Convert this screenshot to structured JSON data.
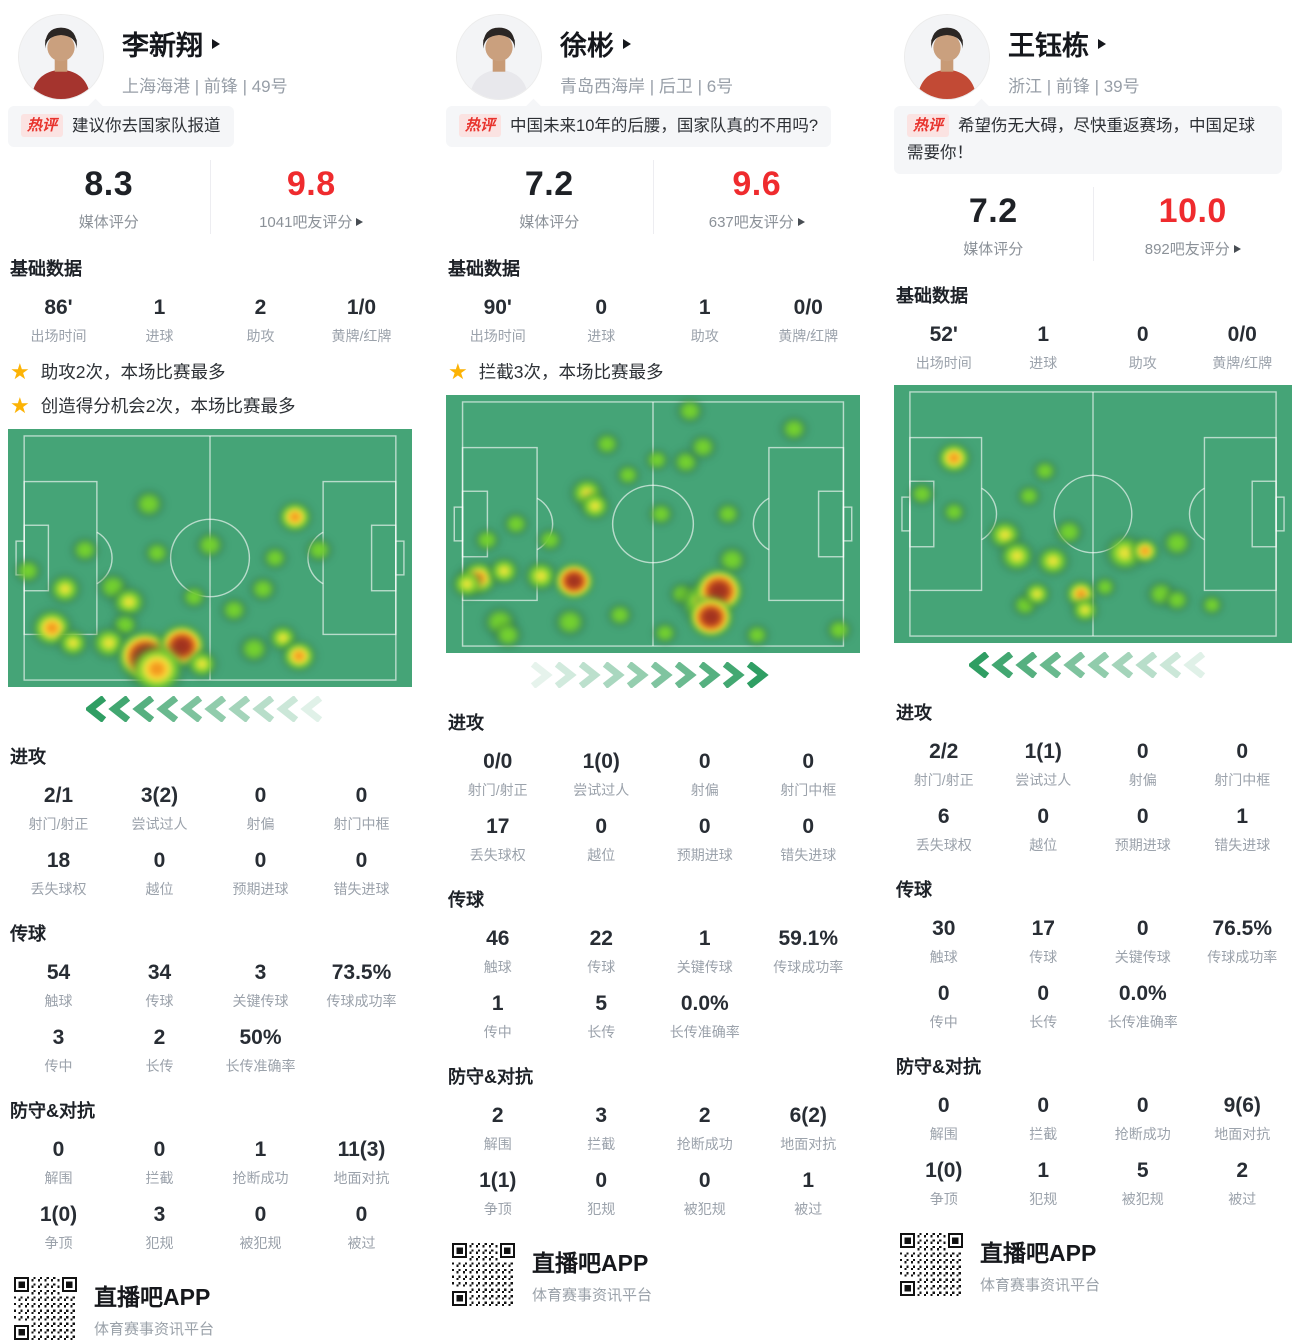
{
  "footer": {
    "app_name": "直播吧APP",
    "app_desc": "体育赛事资讯平台"
  },
  "colors": {
    "accent_red": "#ef2b2e",
    "hot_badge_red": "#e8332d",
    "hot_badge_bg": "#fbe3e2",
    "pitch_green": "#45a477",
    "star_gold": "#fcb305",
    "arrow_green": "#2f9e63"
  },
  "players": [
    {
      "name": "李新翔",
      "team_line": "上海海港 | 前锋 | 49号",
      "jersey": "#a5342e",
      "hot_label": "热评",
      "hot_comment": "建议你去国家队报道",
      "media_score": "8.3",
      "media_label": "媒体评分",
      "fan_score": "9.8",
      "fan_label": "1041吧友评分",
      "basic_title": "基础数据",
      "basic": [
        [
          "86'",
          "出场时间"
        ],
        [
          "1",
          "进球"
        ],
        [
          "2",
          "助攻"
        ],
        [
          "1/0",
          "黄牌/红牌"
        ]
      ],
      "highlights": [
        "助攻2次，本场比赛最多",
        "创造得分机会2次，本场比赛最多"
      ],
      "arrow_dir": "left",
      "sections": [
        {
          "title": "进攻",
          "rows": [
            [
              [
                "2/1",
                "射门/射正"
              ],
              [
                "3(2)",
                "尝试过人"
              ],
              [
                "0",
                "射偏"
              ],
              [
                "0",
                "射门中框"
              ]
            ],
            [
              [
                "18",
                "丢失球权"
              ],
              [
                "0",
                "越位"
              ],
              [
                "0",
                "预期进球"
              ],
              [
                "0",
                "错失进球"
              ]
            ]
          ]
        },
        {
          "title": "传球",
          "rows": [
            [
              [
                "54",
                "触球"
              ],
              [
                "34",
                "传球"
              ],
              [
                "3",
                "关键传球"
              ],
              [
                "73.5%",
                "传球成功率"
              ]
            ],
            [
              [
                "3",
                "传中"
              ],
              [
                "2",
                "长传"
              ],
              [
                "50%",
                "长传准确率"
              ]
            ]
          ]
        },
        {
          "title": "防守&对抗",
          "rows": [
            [
              [
                "0",
                "解围"
              ],
              [
                "0",
                "拦截"
              ],
              [
                "1",
                "抢断成功"
              ],
              [
                "11(3)",
                "地面对抗"
              ]
            ],
            [
              [
                "1(0)",
                "争顶"
              ],
              [
                "3",
                "犯规"
              ],
              [
                "0",
                "被犯规"
              ],
              [
                "0",
                "被过"
              ]
            ]
          ]
        }
      ],
      "heatmap": [
        [
          35,
          29,
          40,
          1
        ],
        [
          19,
          47,
          36,
          1
        ],
        [
          50,
          45,
          38,
          1
        ],
        [
          37,
          48,
          34,
          1
        ],
        [
          71,
          34,
          44,
          3
        ],
        [
          66,
          50,
          34,
          1
        ],
        [
          77,
          47,
          36,
          1
        ],
        [
          5,
          55,
          36,
          1
        ],
        [
          14,
          62,
          42,
          2
        ],
        [
          26,
          61,
          40,
          1
        ],
        [
          30,
          67,
          44,
          2
        ],
        [
          46,
          65,
          34,
          1
        ],
        [
          63,
          62,
          36,
          1
        ],
        [
          56,
          70,
          36,
          1
        ],
        [
          29,
          76,
          36,
          1
        ],
        [
          11,
          77,
          52,
          3
        ],
        [
          16,
          83,
          40,
          2
        ],
        [
          25,
          83,
          46,
          2
        ],
        [
          34,
          88,
          64,
          4
        ],
        [
          43,
          84,
          54,
          4
        ],
        [
          37,
          93,
          70,
          3
        ],
        [
          48,
          91,
          40,
          2
        ],
        [
          61,
          85,
          40,
          1
        ],
        [
          68,
          81,
          38,
          2
        ],
        [
          72,
          88,
          44,
          3
        ]
      ]
    },
    {
      "name": "徐彬",
      "team_line": "青岛西海岸 | 后卫 | 6号",
      "jersey": "#e8e8ec",
      "hot_label": "热评",
      "hot_comment": "中国未来10年的后腰，国家队真的不用吗?",
      "media_score": "7.2",
      "media_label": "媒体评分",
      "fan_score": "9.6",
      "fan_label": "637吧友评分",
      "basic_title": "基础数据",
      "basic": [
        [
          "90'",
          "出场时间"
        ],
        [
          "0",
          "进球"
        ],
        [
          "1",
          "助攻"
        ],
        [
          "0/0",
          "黄牌/红牌"
        ]
      ],
      "highlights": [
        "拦截3次，本场比赛最多"
      ],
      "arrow_dir": "right",
      "sections": [
        {
          "title": "进攻",
          "rows": [
            [
              [
                "0/0",
                "射门/射正"
              ],
              [
                "1(0)",
                "尝试过人"
              ],
              [
                "0",
                "射偏"
              ],
              [
                "0",
                "射门中框"
              ]
            ],
            [
              [
                "17",
                "丢失球权"
              ],
              [
                "0",
                "越位"
              ],
              [
                "0",
                "预期进球"
              ],
              [
                "0",
                "错失进球"
              ]
            ]
          ]
        },
        {
          "title": "传球",
          "rows": [
            [
              [
                "46",
                "触球"
              ],
              [
                "22",
                "传球"
              ],
              [
                "1",
                "关键传球"
              ],
              [
                "59.1%",
                "传球成功率"
              ]
            ],
            [
              [
                "1",
                "传中"
              ],
              [
                "5",
                "长传"
              ],
              [
                "0.0%",
                "长传准确率"
              ]
            ]
          ]
        },
        {
          "title": "防守&对抗",
          "rows": [
            [
              [
                "2",
                "解围"
              ],
              [
                "3",
                "拦截"
              ],
              [
                "2",
                "抢断成功"
              ],
              [
                "6(2)",
                "地面对抗"
              ]
            ],
            [
              [
                "1(1)",
                "争顶"
              ],
              [
                "0",
                "犯规"
              ],
              [
                "0",
                "被犯规"
              ],
              [
                "1",
                "被过"
              ]
            ]
          ]
        }
      ],
      "heatmap": [
        [
          59,
          6,
          36,
          1
        ],
        [
          84,
          13,
          36,
          1
        ],
        [
          39,
          19,
          34,
          1
        ],
        [
          51,
          25,
          32,
          1
        ],
        [
          58,
          26,
          36,
          1
        ],
        [
          62,
          20,
          36,
          1
        ],
        [
          44,
          31,
          32,
          1
        ],
        [
          34,
          38,
          44,
          2
        ],
        [
          36,
          43,
          40,
          2
        ],
        [
          52,
          46,
          34,
          1
        ],
        [
          68,
          46,
          34,
          1
        ],
        [
          17,
          50,
          34,
          1
        ],
        [
          10,
          56,
          34,
          1
        ],
        [
          25,
          56,
          34,
          1
        ],
        [
          8,
          71,
          48,
          3
        ],
        [
          5,
          73,
          40,
          2
        ],
        [
          14,
          68,
          40,
          2
        ],
        [
          23,
          70,
          44,
          2
        ],
        [
          31,
          72,
          46,
          4
        ],
        [
          13,
          88,
          44,
          1
        ],
        [
          15,
          93,
          38,
          1
        ],
        [
          30,
          88,
          42,
          1
        ],
        [
          42,
          85,
          34,
          1
        ],
        [
          53,
          92,
          32,
          1
        ],
        [
          57,
          77,
          34,
          1
        ],
        [
          69,
          64,
          40,
          1
        ],
        [
          62,
          80,
          60,
          2
        ],
        [
          66,
          76,
          56,
          4
        ],
        [
          64,
          86,
          52,
          4
        ],
        [
          75,
          93,
          32,
          1
        ],
        [
          95,
          91,
          34,
          1
        ]
      ]
    },
    {
      "name": "王钰栋",
      "team_line": "浙江 | 前锋 | 39号",
      "jersey": "#c24a35",
      "hot_label": "热评",
      "hot_comment": "希望伤无大碍，尽快重返赛场，中国足球需要你！",
      "media_score": "7.2",
      "media_label": "媒体评分",
      "fan_score": "10.0",
      "fan_label": "892吧友评分",
      "basic_title": "基础数据",
      "basic": [
        [
          "52'",
          "出场时间"
        ],
        [
          "1",
          "进球"
        ],
        [
          "0",
          "助攻"
        ],
        [
          "0/0",
          "黄牌/红牌"
        ]
      ],
      "highlights": [],
      "arrow_dir": "left",
      "sections": [
        {
          "title": "进攻",
          "rows": [
            [
              [
                "2/2",
                "射门/射正"
              ],
              [
                "1(1)",
                "尝试过人"
              ],
              [
                "0",
                "射偏"
              ],
              [
                "0",
                "射门中框"
              ]
            ],
            [
              [
                "6",
                "丢失球权"
              ],
              [
                "0",
                "越位"
              ],
              [
                "0",
                "预期进球"
              ],
              [
                "1",
                "错失进球"
              ]
            ]
          ]
        },
        {
          "title": "传球",
          "rows": [
            [
              [
                "30",
                "触球"
              ],
              [
                "17",
                "传球"
              ],
              [
                "0",
                "关键传球"
              ],
              [
                "76.5%",
                "传球成功率"
              ]
            ],
            [
              [
                "0",
                "传中"
              ],
              [
                "0",
                "长传"
              ],
              [
                "0.0%",
                "长传准确率"
              ]
            ]
          ]
        },
        {
          "title": "防守&对抗",
          "rows": [
            [
              [
                "0",
                "解围"
              ],
              [
                "0",
                "拦截"
              ],
              [
                "0",
                "抢断成功"
              ],
              [
                "9(6)",
                "地面对抗"
              ]
            ],
            [
              [
                "1(0)",
                "争顶"
              ],
              [
                "1",
                "犯规"
              ],
              [
                "5",
                "被犯规"
              ],
              [
                "2",
                "被过"
              ]
            ]
          ]
        }
      ],
      "heatmap": [
        [
          15,
          28,
          44,
          3
        ],
        [
          7,
          42,
          34,
          1
        ],
        [
          15,
          49,
          32,
          1
        ],
        [
          38,
          33,
          32,
          1
        ],
        [
          34,
          43,
          32,
          1
        ],
        [
          28,
          58,
          44,
          2
        ],
        [
          31,
          66,
          46,
          2
        ],
        [
          40,
          68,
          44,
          2
        ],
        [
          44,
          57,
          38,
          1
        ],
        [
          58,
          65,
          52,
          2
        ],
        [
          63,
          64,
          36,
          3
        ],
        [
          71,
          61,
          40,
          1
        ],
        [
          33,
          85,
          34,
          1
        ],
        [
          36,
          81,
          36,
          2
        ],
        [
          47,
          81,
          40,
          3
        ],
        [
          48,
          87,
          36,
          2
        ],
        [
          53,
          78,
          30,
          1
        ],
        [
          67,
          81,
          38,
          1
        ],
        [
          71,
          83,
          34,
          1
        ],
        [
          80,
          85,
          30,
          1
        ]
      ]
    }
  ]
}
